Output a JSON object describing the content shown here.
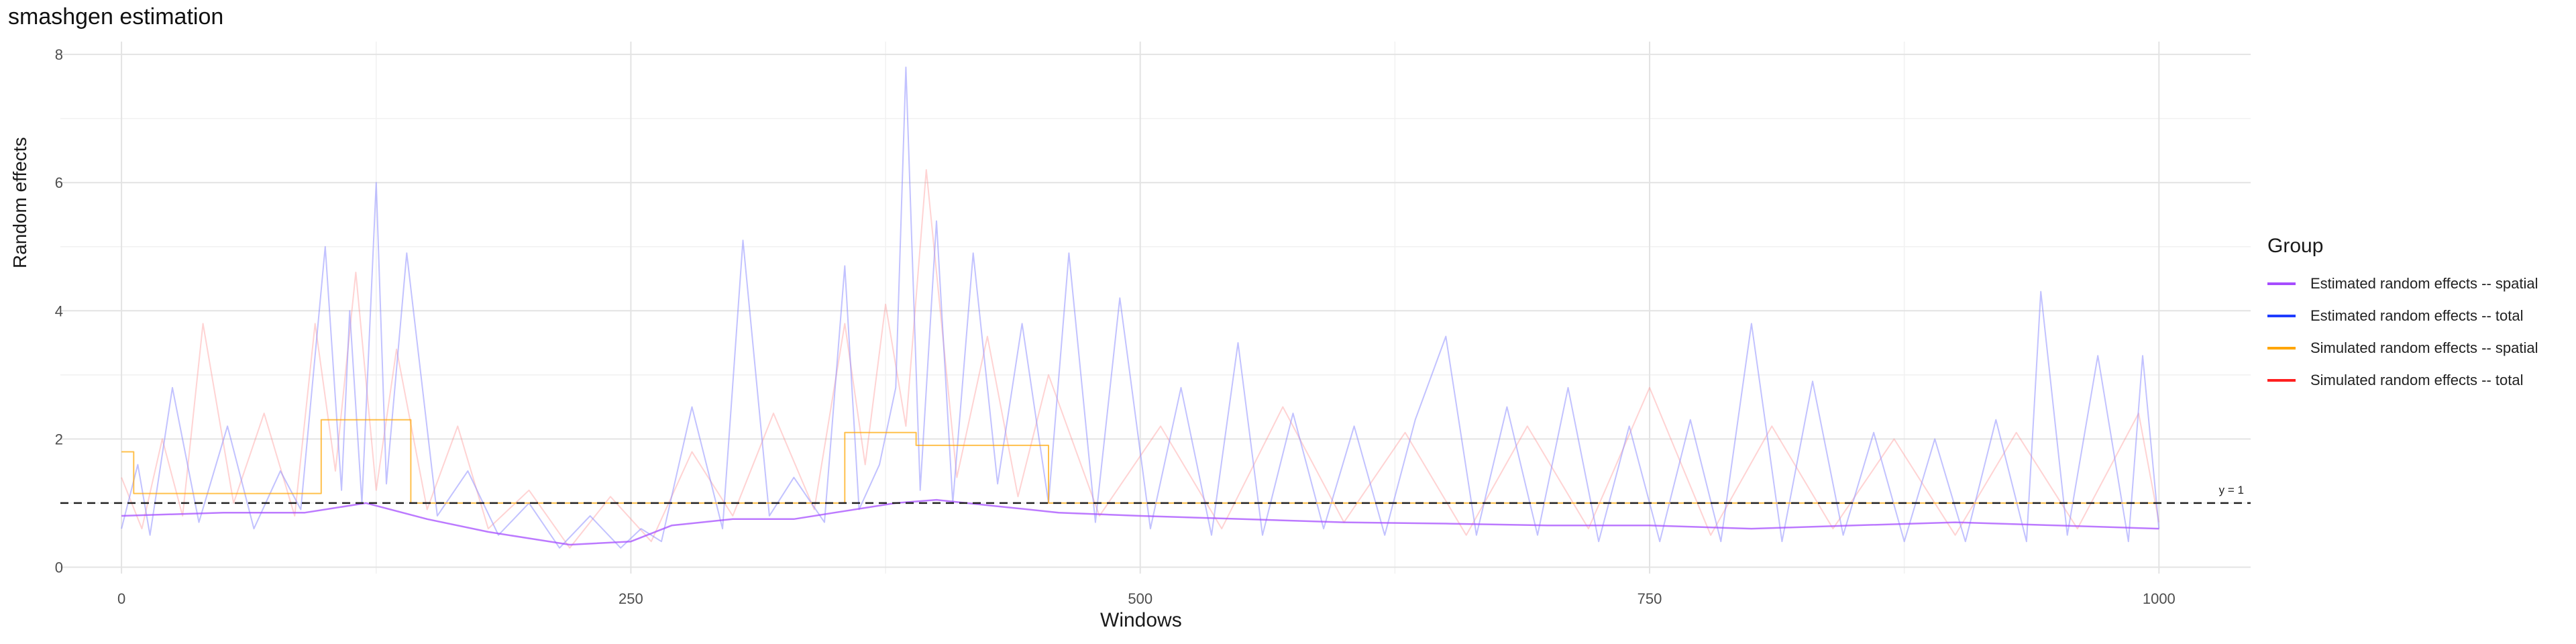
{
  "chart_data": {
    "type": "line",
    "title": "smashgen estimation",
    "xlabel": "Windows",
    "ylabel": "Random effects",
    "xlim": [
      -30,
      1045
    ],
    "ylim": [
      -0.1,
      8.2
    ],
    "x_ticks": [
      0,
      250,
      500,
      750,
      1000
    ],
    "y_ticks": [
      0,
      2,
      4,
      6,
      8
    ],
    "grid": true,
    "legend": {
      "title": "Group",
      "placement": "right",
      "entries": [
        {
          "label": "Estimated random effects -- spatial",
          "color": "#a64dff"
        },
        {
          "label": "Estimated random effects -- total",
          "color": "#1f3cff"
        },
        {
          "label": "Simulated random effects -- spatial",
          "color": "#ffa500"
        },
        {
          "label": "Simulated random effects -- total",
          "color": "#ff2020"
        }
      ]
    },
    "reference_line": {
      "y": 1,
      "label": "y = 1",
      "style": "dashed",
      "color": "#222222"
    },
    "series": [
      {
        "name": "Estimated random effects -- spatial",
        "color": "#a64dff",
        "x": [
          0,
          50,
          90,
          120,
          150,
          180,
          200,
          220,
          250,
          270,
          300,
          330,
          350,
          380,
          400,
          430,
          460,
          500,
          550,
          600,
          650,
          700,
          750,
          800,
          850,
          900,
          950,
          1000
        ],
        "y": [
          0.8,
          0.85,
          0.85,
          1.0,
          0.75,
          0.55,
          0.45,
          0.35,
          0.4,
          0.65,
          0.75,
          0.75,
          0.85,
          1.0,
          1.05,
          0.95,
          0.85,
          0.8,
          0.75,
          0.7,
          0.68,
          0.65,
          0.65,
          0.6,
          0.65,
          0.7,
          0.65,
          0.6
        ]
      },
      {
        "name": "Simulated random effects -- spatial",
        "color": "#ffa500",
        "x": [
          0,
          6,
          6,
          98,
          98,
          142,
          142,
          258,
          258,
          355,
          355,
          390,
          390,
          455,
          455,
          1000
        ],
        "y": [
          1.8,
          1.8,
          1.15,
          1.15,
          2.3,
          2.3,
          1.0,
          1.0,
          1.0,
          1.0,
          2.1,
          2.1,
          1.9,
          1.9,
          1.0,
          1.0
        ]
      },
      {
        "name": "Estimated random effects -- total",
        "color": "#8f8fff",
        "x": [
          0,
          8,
          14,
          25,
          38,
          52,
          65,
          78,
          88,
          100,
          108,
          112,
          118,
          125,
          130,
          140,
          155,
          170,
          185,
          200,
          215,
          230,
          245,
          255,
          265,
          280,
          295,
          305,
          318,
          330,
          345,
          355,
          362,
          372,
          380,
          385,
          392,
          400,
          408,
          418,
          430,
          442,
          455,
          465,
          478,
          490,
          505,
          520,
          535,
          548,
          560,
          575,
          590,
          605,
          620,
          635,
          650,
          665,
          680,
          695,
          710,
          725,
          740,
          755,
          770,
          785,
          800,
          815,
          830,
          845,
          860,
          875,
          890,
          905,
          920,
          935,
          942,
          955,
          970,
          985,
          992,
          1000
        ],
        "y": [
          0.6,
          1.6,
          0.5,
          2.8,
          0.7,
          2.2,
          0.6,
          1.5,
          0.9,
          5.0,
          1.2,
          4.0,
          1.0,
          6.0,
          1.3,
          4.9,
          0.8,
          1.5,
          0.5,
          1.0,
          0.3,
          0.8,
          0.3,
          0.6,
          0.4,
          2.5,
          0.6,
          5.1,
          0.8,
          1.4,
          0.7,
          4.7,
          0.9,
          1.6,
          2.8,
          7.8,
          1.2,
          5.4,
          1.0,
          4.9,
          1.3,
          3.8,
          1.0,
          4.9,
          0.7,
          4.2,
          0.6,
          2.8,
          0.5,
          3.5,
          0.5,
          2.4,
          0.6,
          2.2,
          0.5,
          2.3,
          3.6,
          0.5,
          2.5,
          0.5,
          2.8,
          0.4,
          2.2,
          0.4,
          2.3,
          0.4,
          3.8,
          0.4,
          2.9,
          0.5,
          2.1,
          0.4,
          2.0,
          0.4,
          2.3,
          0.4,
          4.3,
          0.5,
          3.3,
          0.4,
          3.3,
          0.6
        ]
      },
      {
        "name": "Simulated random effects -- total",
        "color": "#ff8080",
        "x": [
          0,
          10,
          20,
          30,
          40,
          55,
          70,
          85,
          95,
          105,
          115,
          125,
          135,
          150,
          165,
          180,
          200,
          220,
          240,
          260,
          280,
          300,
          320,
          340,
          355,
          365,
          375,
          385,
          395,
          410,
          425,
          440,
          455,
          480,
          510,
          540,
          570,
          600,
          630,
          660,
          690,
          720,
          750,
          780,
          810,
          840,
          870,
          900,
          930,
          960,
          990,
          1000
        ],
        "y": [
          1.4,
          0.6,
          2.0,
          0.8,
          3.8,
          1.0,
          2.4,
          0.8,
          3.8,
          1.5,
          4.6,
          1.2,
          3.4,
          0.9,
          2.2,
          0.6,
          1.2,
          0.3,
          1.1,
          0.4,
          1.8,
          0.8,
          2.4,
          0.9,
          3.8,
          1.6,
          4.1,
          2.2,
          6.2,
          1.4,
          3.6,
          1.1,
          3.0,
          0.8,
          2.2,
          0.6,
          2.5,
          0.7,
          2.1,
          0.5,
          2.2,
          0.6,
          2.8,
          0.5,
          2.2,
          0.6,
          2.0,
          0.5,
          2.1,
          0.6,
          2.4,
          0.7
        ]
      }
    ]
  }
}
